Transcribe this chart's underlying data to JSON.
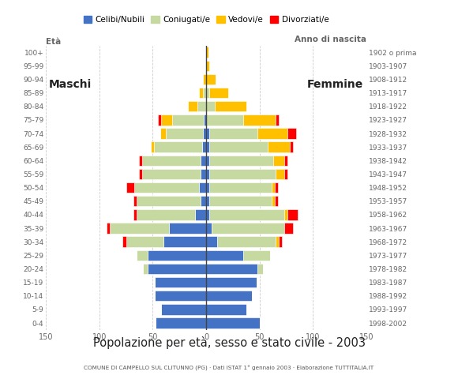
{
  "age_groups": [
    "0-4",
    "5-9",
    "10-14",
    "15-19",
    "20-24",
    "25-29",
    "30-34",
    "35-39",
    "40-44",
    "45-49",
    "50-54",
    "55-59",
    "60-64",
    "65-69",
    "70-74",
    "75-79",
    "80-84",
    "85-89",
    "90-94",
    "95-99",
    "100+"
  ],
  "birth_years": [
    "1998-2002",
    "1993-1997",
    "1988-1992",
    "1983-1987",
    "1978-1982",
    "1973-1977",
    "1968-1972",
    "1963-1967",
    "1958-1962",
    "1953-1957",
    "1948-1952",
    "1943-1947",
    "1938-1942",
    "1933-1937",
    "1928-1932",
    "1923-1927",
    "1918-1922",
    "1913-1917",
    "1908-1912",
    "1903-1907",
    "1902 o prima"
  ],
  "colors": {
    "single": "#4472C4",
    "married": "#C6D9A0",
    "widowed": "#FFC000",
    "divorced": "#FF0000"
  },
  "males": {
    "single": [
      47,
      42,
      48,
      48,
      55,
      55,
      40,
      35,
      10,
      5,
      7,
      5,
      5,
      4,
      3,
      2,
      0,
      0,
      0,
      0,
      0
    ],
    "married": [
      0,
      0,
      0,
      0,
      4,
      10,
      35,
      55,
      55,
      60,
      60,
      55,
      55,
      45,
      35,
      30,
      8,
      3,
      0,
      0,
      0
    ],
    "widowed": [
      0,
      0,
      0,
      0,
      0,
      0,
      0,
      0,
      0,
      0,
      0,
      0,
      0,
      3,
      5,
      10,
      9,
      4,
      3,
      0,
      0
    ],
    "divorced": [
      0,
      0,
      0,
      0,
      0,
      0,
      3,
      3,
      3,
      3,
      8,
      3,
      3,
      0,
      0,
      3,
      0,
      0,
      0,
      0,
      0
    ]
  },
  "females": {
    "single": [
      50,
      38,
      43,
      47,
      48,
      35,
      10,
      5,
      3,
      3,
      3,
      3,
      3,
      3,
      3,
      0,
      0,
      0,
      0,
      0,
      0
    ],
    "married": [
      0,
      0,
      0,
      0,
      5,
      25,
      55,
      68,
      70,
      58,
      58,
      62,
      60,
      55,
      45,
      35,
      8,
      3,
      0,
      0,
      0
    ],
    "widowed": [
      0,
      0,
      0,
      0,
      0,
      0,
      3,
      0,
      3,
      3,
      3,
      8,
      10,
      20,
      28,
      30,
      30,
      18,
      9,
      3,
      2
    ],
    "divorced": [
      0,
      0,
      0,
      0,
      0,
      0,
      3,
      8,
      10,
      3,
      3,
      3,
      3,
      3,
      8,
      3,
      0,
      0,
      0,
      0,
      0
    ]
  },
  "title": "Popolazione per età, sesso e stato civile - 2003",
  "subtitle": "COMUNE DI CAMPELLO SUL CLITUNNO (PG) · Dati ISTAT 1° gennaio 2003 · Elaborazione TUTTITALIA.IT",
  "label_maschi": "Maschi",
  "label_femmine": "Femmine",
  "label_eta": "Età",
  "label_anno": "Anno di nascita",
  "legend_labels": [
    "Celibi/Nubili",
    "Coniugati/e",
    "Vedovi/e",
    "Divorziati/e"
  ],
  "xlim": 150,
  "bg_color": "#FFFFFF",
  "grid_color": "#CCCCCC"
}
